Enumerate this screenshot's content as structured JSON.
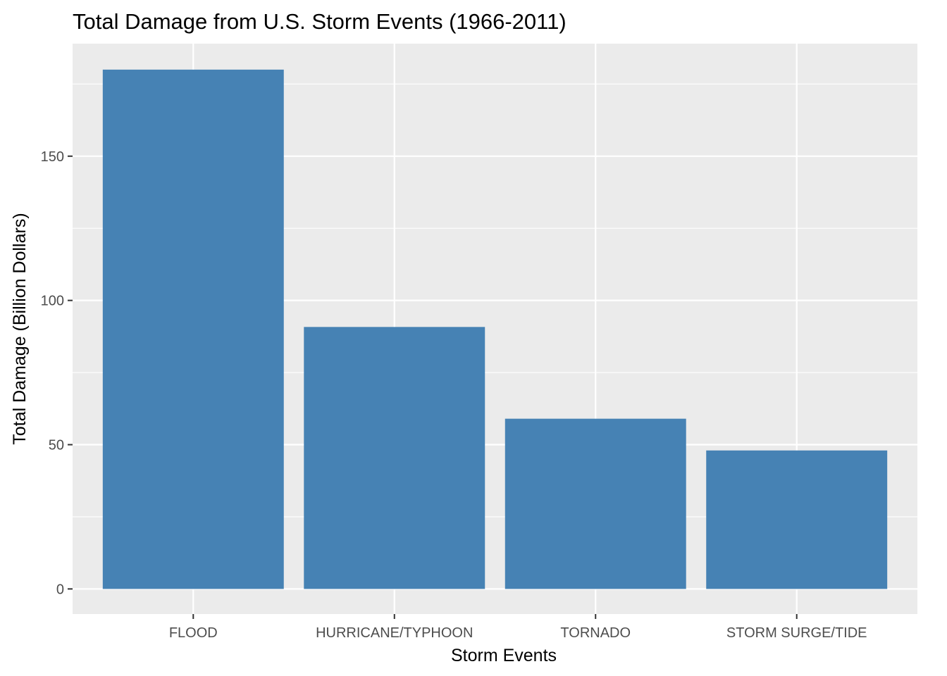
{
  "chart_data": {
    "type": "bar",
    "title": "Total Damage from U.S. Storm Events (1966-2011)",
    "xlabel": "Storm Events",
    "ylabel": "Total Damage (Billion Dollars)",
    "categories": [
      "FLOOD",
      "HURRICANE/TYPHOON",
      "TORNADO",
      "STORM SURGE/TIDE"
    ],
    "values": [
      180.0,
      90.8,
      59.0,
      48.0
    ],
    "ylim": [
      -8.7,
      189
    ],
    "yticks": [
      0,
      50,
      100,
      150
    ],
    "ytick_labels": [
      "0",
      "50",
      "100",
      "150"
    ],
    "grid": true,
    "legend": "none",
    "colors": {
      "bar": "#4682B4",
      "panel_background": "#EBEBEB",
      "grid": "#FFFFFF",
      "tick_text": "#4D4D4D",
      "axis_tick": "#333333"
    }
  }
}
